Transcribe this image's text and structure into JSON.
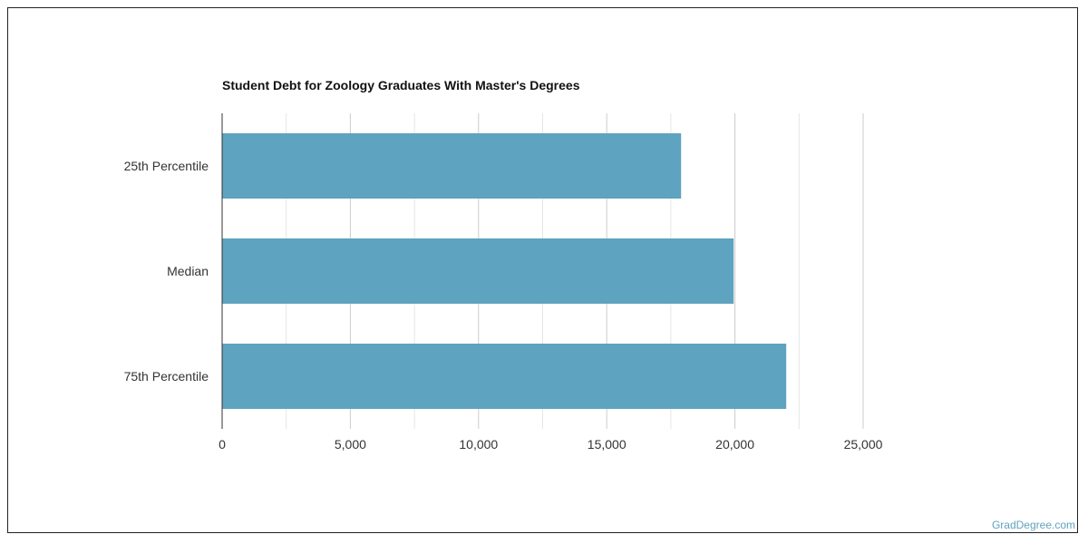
{
  "chart_data": {
    "type": "bar",
    "orientation": "horizontal",
    "title": "Student Debt for Zoology Graduates With Master's Degrees",
    "categories": [
      "25th Percentile",
      "Median",
      "75th Percentile"
    ],
    "values": [
      17900,
      19950,
      22000
    ],
    "xlim": [
      0,
      25000
    ],
    "ticks": [
      0,
      5000,
      10000,
      15000,
      20000,
      25000
    ],
    "tick_labels": [
      "0",
      "5,000",
      "10,000",
      "15,000",
      "20,000",
      "25,000"
    ],
    "xlabel": "",
    "ylabel": "",
    "grid": true,
    "bar_color": "#5ea3bf"
  },
  "footer": {
    "source": "GradDegree.com"
  }
}
